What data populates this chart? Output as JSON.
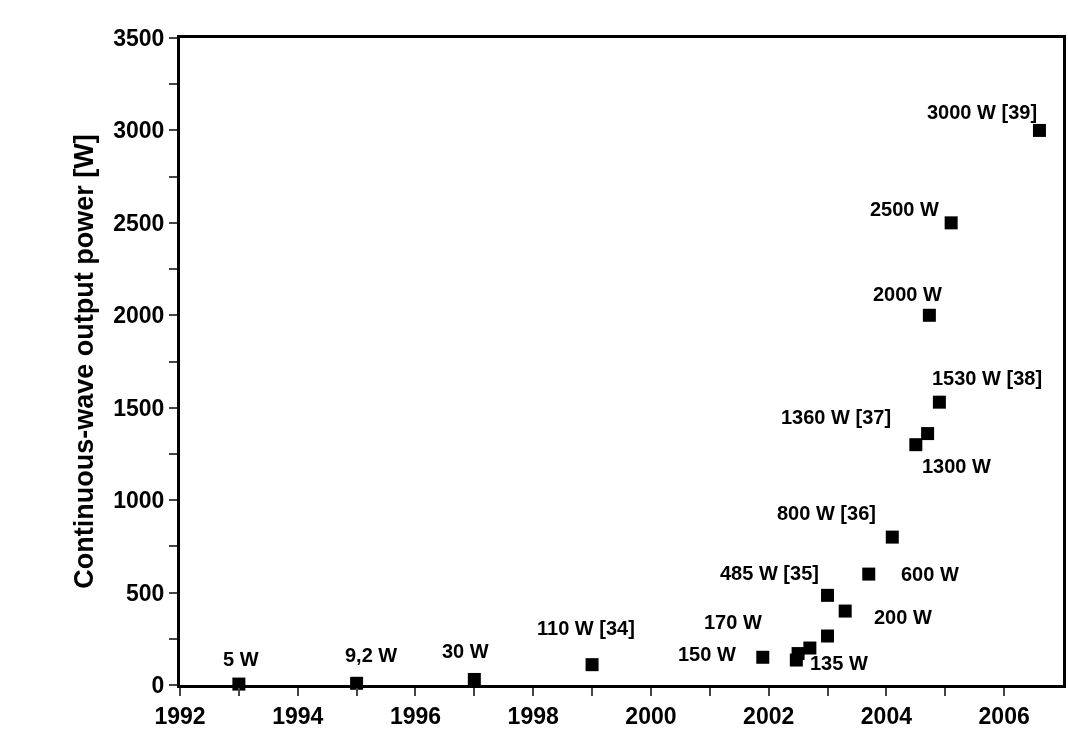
{
  "chart_data": {
    "type": "scatter",
    "ylabel": "Continuous-wave output power [W]",
    "marker": "square",
    "grid": false,
    "x": [
      1993.0,
      1995.0,
      1997.0,
      1999.0,
      2001.9,
      2002.47,
      2002.5,
      2002.7,
      2003.0,
      2003.0,
      2003.3,
      2003.7,
      2004.1,
      2004.5,
      2004.7,
      2004.9,
      2004.73,
      2005.1,
      2006.6
    ],
    "series": [
      {
        "color": "#000000",
        "values": [
          5,
          9.2,
          30,
          110,
          150,
          135,
          170,
          200,
          265,
          485,
          400,
          600,
          800,
          1300,
          1360,
          1530,
          2000,
          2500,
          3000
        ],
        "value_labels": [
          "5 W",
          "9,2 W",
          "30 W",
          "110 W [34]",
          "150 W",
          "135 W",
          "170 W",
          null,
          null,
          "485 W [35]",
          null,
          "600 W",
          "800 W [36]",
          "1300 W",
          "1360 W [37]",
          "1530 W [38]",
          "2000 W",
          "2500 W",
          "3000 W [39]"
        ]
      }
    ],
    "xlim": [
      1992,
      2007
    ],
    "xticks": [
      1992,
      {
        "value": 1993,
        "label": null
      },
      1994,
      {
        "value": 1995,
        "label": null
      },
      1996,
      {
        "value": 1997,
        "label": null
      },
      1998,
      {
        "value": 1999,
        "label": null
      },
      2000,
      {
        "value": 2001,
        "label": null
      },
      2002,
      {
        "value": 2003,
        "label": null
      },
      2004,
      {
        "value": 2005,
        "label": null
      },
      2006
    ],
    "ylim": [
      0,
      3500
    ],
    "annotations": [
      "200 W"
    ],
    "yticks": [
      0,
      {
        "value": 250,
        "label": null
      },
      500,
      {
        "value": 750,
        "label": null
      },
      1000,
      {
        "value": 1250,
        "label": null
      },
      1500,
      {
        "value": 1750,
        "label": null
      },
      2000,
      {
        "value": 2250,
        "label": null
      },
      2500,
      {
        "value": 2750,
        "label": null
      },
      3000,
      {
        "value": 3250,
        "label": null
      },
      3500
    ]
  }
}
